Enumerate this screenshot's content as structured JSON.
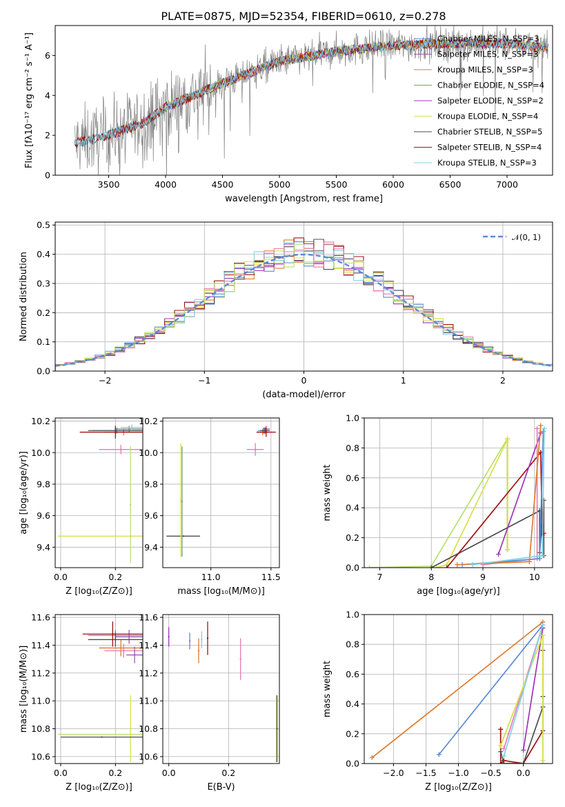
{
  "colors": {
    "spectrum": "#808080",
    "chabrier_miles": "#5b8ad6",
    "salpeter_miles": "#9b59b6",
    "kroupa_miles": "#e07b2e",
    "chabrier_elodie": "#7a9e6a",
    "salpeter_elodie": "#a033b8",
    "kroupa_elodie": "#d8e04a",
    "chabrier_stelib": "#4d4d4d",
    "salpeter_stelib": "#a01010",
    "kroupa_stelib": "#80d0e8",
    "pink": "#e87ab0",
    "green": "#b8e06a",
    "gauss": "#5b8ad6"
  },
  "chart_data": [
    {
      "id": "spectrum",
      "type": "line",
      "title": "PLATE=0875, MJD=52354, FIBERID=0610, z=0.278",
      "xlabel": "wavelength [Angstrom, rest frame]",
      "ylabel": "Flux [fλ10⁻¹⁷ erg cm⁻² s⁻¹ A⁻¹]",
      "xlim": [
        3030,
        7400
      ],
      "ylim": [
        0,
        7.5
      ],
      "xticks": [
        "3500",
        "4000",
        "4500",
        "5000",
        "5500",
        "6000",
        "6500",
        "7000"
      ],
      "yticks": [
        "0",
        "2",
        "4",
        "6"
      ],
      "legend_position": "top-right",
      "legend": [
        {
          "label": "Chabrier MILES, N_SSP=3",
          "color_key": "chabrier_miles"
        },
        {
          "label": "Salpeter MILES, N_SSP=3",
          "color_key": "salpeter_miles"
        },
        {
          "label": "Kroupa MILES, N_SSP=3",
          "color_key": "kroupa_miles"
        },
        {
          "label": "Chabrier ELODIE, N_SSP=4",
          "color_key": "chabrier_elodie"
        },
        {
          "label": "Salpeter ELODIE, N_SSP=2",
          "color_key": "salpeter_elodie"
        },
        {
          "label": "Kroupa ELODIE, N_SSP=4",
          "color_key": "kroupa_elodie"
        },
        {
          "label": "Chabrier STELIB, N_SSP=5",
          "color_key": "chabrier_stelib"
        },
        {
          "label": "Salpeter STELIB, N_SSP=4",
          "color_key": "salpeter_stelib"
        },
        {
          "label": "Kroupa STELIB, N_SSP=3",
          "color_key": "kroupa_stelib"
        }
      ],
      "continuum": {
        "x": [
          3200,
          3500,
          3800,
          4000,
          4500,
          5000,
          5500,
          6000,
          6500,
          7000,
          7350
        ],
        "y": [
          1.6,
          2.0,
          2.6,
          3.4,
          4.6,
          5.7,
          6.2,
          6.5,
          6.6,
          6.6,
          6.4
        ]
      }
    },
    {
      "id": "residuals",
      "type": "bar",
      "xlabel": "(data-model)/error",
      "ylabel": "Normed distribution",
      "xlim": [
        -2.5,
        2.5
      ],
      "ylim": [
        0,
        0.51
      ],
      "xticks": [
        "−2",
        "−1",
        "0",
        "1",
        "2"
      ],
      "yticks": [
        "0.0",
        "0.1",
        "0.2",
        "0.3",
        "0.4",
        "0.5"
      ],
      "legend_position": "top-right",
      "legend": [
        {
          "label": "𝒩(0, 1)",
          "color_key": "gauss"
        }
      ],
      "bin_width": 0.1
    },
    {
      "id": "age_vs_Z",
      "type": "scatter",
      "xlabel": "Z [log₁₀(Z/Z⊙)]",
      "ylabel": "age  [log₁₀(age/yr)]",
      "xlim": [
        -0.02,
        0.3
      ],
      "ylim": [
        9.27,
        10.22
      ],
      "xticks": [
        "0.0",
        "0.2"
      ],
      "yticks": [
        "9.4",
        "9.6",
        "9.8",
        "10.0",
        "10.2"
      ],
      "points": [
        {
          "x": 0.205,
          "y": 10.14,
          "xerr": 0.09,
          "yerr": 0.02,
          "color_key": "chabrier_miles"
        },
        {
          "x": 0.25,
          "y": 10.15,
          "xerr": 0.05,
          "yerr": 0.02,
          "color_key": "salpeter_miles"
        },
        {
          "x": 0.23,
          "y": 10.13,
          "xerr": 0.07,
          "yerr": 0.02,
          "color_key": "kroupa_miles"
        },
        {
          "x": 0.25,
          "y": 10.15,
          "xerr": 0.05,
          "yerr": 0.02,
          "color_key": "chabrier_elodie"
        },
        {
          "x": 0.2,
          "y": 10.14,
          "xerr": 0.1,
          "yerr": 0.02,
          "color_key": "chabrier_stelib"
        },
        {
          "x": 0.2,
          "y": 10.13,
          "xerr": 0.13,
          "yerr": 0.04,
          "color_key": "salpeter_stelib"
        },
        {
          "x": 0.26,
          "y": 10.16,
          "xerr": 0.04,
          "yerr": 0.02,
          "color_key": "kroupa_stelib"
        },
        {
          "x": 0.22,
          "y": 10.02,
          "xerr": 0.08,
          "yerr": 0.03,
          "color_key": "pink"
        },
        {
          "x": 0.255,
          "y": 9.47,
          "xerr": 0.265,
          "yerr": 0.0,
          "color_key": "kroupa_elodie"
        },
        {
          "x": 0.255,
          "y": 9.67,
          "xerr": 0.0,
          "yerr": 0.37,
          "color_key": "green"
        }
      ]
    },
    {
      "id": "age_vs_mass",
      "type": "scatter",
      "xlabel": "mass [log₁₀(M/M⊙)]",
      "xlim": [
        10.6,
        11.57
      ],
      "ylim": [
        9.27,
        10.22
      ],
      "xticks": [
        "11.0",
        "11.5"
      ],
      "yticks": [
        "9.4",
        "9.6",
        "9.8",
        "10.0",
        "10.2"
      ],
      "points": [
        {
          "x": 11.44,
          "y": 10.14,
          "xerr": 0.05,
          "yerr": 0.02,
          "color_key": "chabrier_miles"
        },
        {
          "x": 11.46,
          "y": 10.15,
          "xerr": 0.03,
          "yerr": 0.02,
          "color_key": "salpeter_miles"
        },
        {
          "x": 11.43,
          "y": 10.13,
          "xerr": 0.05,
          "yerr": 0.02,
          "color_key": "kroupa_miles"
        },
        {
          "x": 11.45,
          "y": 10.14,
          "xerr": 0.04,
          "yerr": 0.02,
          "color_key": "chabrier_stelib"
        },
        {
          "x": 11.46,
          "y": 10.13,
          "xerr": 0.08,
          "yerr": 0.03,
          "color_key": "salpeter_stelib"
        },
        {
          "x": 11.37,
          "y": 10.02,
          "xerr": 0.07,
          "yerr": 0.04,
          "color_key": "pink"
        },
        {
          "x": 10.77,
          "y": 9.47,
          "xerr": 0.14,
          "yerr": 0.0,
          "color_key": "chabrier_stelib"
        },
        {
          "x": 10.75,
          "y": 9.7,
          "xerr": 0.0,
          "yerr": 0.36,
          "color_key": "kroupa_elodie"
        },
        {
          "x": 10.76,
          "y": 9.69,
          "xerr": 0.0,
          "yerr": 0.35,
          "color_key": "chabrier_elodie"
        }
      ]
    },
    {
      "id": "mass_weight_vs_age",
      "type": "line",
      "xlabel": "age  [log₁₀(age/yr)]",
      "ylabel": "mass weight",
      "xlim": [
        6.7,
        10.35
      ],
      "ylim": [
        0,
        1.0
      ],
      "xticks": [
        "7",
        "8",
        "9",
        "10"
      ],
      "yticks": [
        "0.0",
        "0.2",
        "0.4",
        "0.6",
        "0.8",
        "1.0"
      ],
      "series": [
        {
          "color_key": "green",
          "x": [
            6.8,
            8.0,
            9.47,
            9.47
          ],
          "y": [
            0.0,
            0.01,
            0.86,
            0.12
          ]
        },
        {
          "color_key": "kroupa_elodie",
          "x": [
            8.1,
            8.3,
            9.48,
            9.48
          ],
          "y": [
            0.0,
            0.02,
            0.86,
            0.12
          ]
        },
        {
          "color_key": "chabrier_stelib",
          "x": [
            8.0,
            10.1,
            10.1,
            10.18,
            10.18
          ],
          "y": [
            0.0,
            0.38,
            0.1,
            0.45,
            0.08
          ]
        },
        {
          "color_key": "salpeter_stelib",
          "x": [
            8.3,
            10.12,
            10.15,
            10.18
          ],
          "y": [
            0.0,
            0.77,
            0.22,
            0.23
          ]
        },
        {
          "color_key": "salpeter_elodie",
          "x": [
            9.3,
            10.12
          ],
          "y": [
            0.09,
            0.9
          ]
        },
        {
          "color_key": "pink",
          "x": [
            9.0,
            10.05,
            10.05
          ],
          "y": [
            0.02,
            0.06,
            0.93
          ]
        },
        {
          "color_key": "chabrier_miles",
          "x": [
            8.6,
            10.1,
            10.17
          ],
          "y": [
            0.02,
            0.06,
            0.91
          ]
        },
        {
          "color_key": "kroupa_miles",
          "x": [
            8.5,
            9.9,
            10.12
          ],
          "y": [
            0.02,
            0.04,
            0.95
          ]
        },
        {
          "color_key": "kroupa_stelib",
          "x": [
            8.8,
            10.15,
            10.19
          ],
          "y": [
            0.02,
            0.08,
            0.93
          ]
        }
      ]
    },
    {
      "id": "mass_vs_Z",
      "type": "scatter",
      "xlabel": "Z [log₁₀(Z/Z⊙)]",
      "ylabel": "mass [log₁₀(M/M⊙)]",
      "xlim": [
        -0.02,
        0.3
      ],
      "ylim": [
        10.55,
        11.62
      ],
      "xticks": [
        "0.0",
        "0.2"
      ],
      "yticks": [
        "10.6",
        "10.8",
        "11.0",
        "11.2",
        "11.4",
        "11.6"
      ],
      "points": [
        {
          "x": 0.2,
          "y": 11.47,
          "xerr": 0.1,
          "yerr": 0.04,
          "color_key": "chabrier_miles"
        },
        {
          "x": 0.25,
          "y": 11.46,
          "xerr": 0.05,
          "yerr": 0.05,
          "color_key": "salpeter_miles"
        },
        {
          "x": 0.22,
          "y": 11.38,
          "xerr": 0.08,
          "yerr": 0.06,
          "color_key": "kroupa_miles"
        },
        {
          "x": 0.2,
          "y": 11.44,
          "xerr": 0.1,
          "yerr": 0.05,
          "color_key": "chabrier_stelib"
        },
        {
          "x": 0.19,
          "y": 11.48,
          "xerr": 0.11,
          "yerr": 0.09,
          "color_key": "salpeter_stelib"
        },
        {
          "x": 0.23,
          "y": 11.36,
          "xerr": 0.07,
          "yerr": 0.05,
          "color_key": "pink"
        },
        {
          "x": 0.27,
          "y": 11.33,
          "xerr": 0.03,
          "yerr": 0.06,
          "color_key": "salpeter_miles"
        },
        {
          "x": 0.255,
          "y": 10.76,
          "xerr": 0.265,
          "yerr": 0.0,
          "color_key": "green"
        },
        {
          "x": 0.255,
          "y": 10.8,
          "xerr": 0.0,
          "yerr": 0.24,
          "color_key": "kroupa_elodie"
        },
        {
          "x": 0.15,
          "y": 10.74,
          "xerr": 0.15,
          "yerr": 0.0,
          "color_key": "chabrier_stelib"
        }
      ]
    },
    {
      "id": "mass_vs_ebv",
      "type": "scatter",
      "xlabel": "E(B-V)",
      "xlim": [
        -0.02,
        0.37
      ],
      "ylim": [
        10.55,
        11.62
      ],
      "xticks": [
        "0.0",
        "0.2"
      ],
      "yticks": [
        "10.6",
        "10.8",
        "11.0",
        "11.2",
        "11.4",
        "11.6"
      ],
      "points": [
        {
          "x": 0.0,
          "y": 11.46,
          "yerr": 0.07,
          "color_key": "salpeter_elodie"
        },
        {
          "x": 0.07,
          "y": 11.43,
          "yerr": 0.06,
          "color_key": "chabrier_miles"
        },
        {
          "x": 0.1,
          "y": 11.36,
          "yerr": 0.09,
          "color_key": "kroupa_miles"
        },
        {
          "x": 0.11,
          "y": 11.44,
          "yerr": 0.06,
          "color_key": "kroupa_stelib"
        },
        {
          "x": 0.13,
          "y": 11.45,
          "yerr": 0.12,
          "color_key": "salpeter_stelib"
        },
        {
          "x": 0.24,
          "y": 11.3,
          "yerr": 0.15,
          "color_key": "pink"
        },
        {
          "x": 0.36,
          "y": 10.8,
          "yerr": 0.24,
          "color_key": "green"
        },
        {
          "x": 0.362,
          "y": 10.8,
          "yerr": 0.24,
          "color_key": "chabrier_stelib"
        }
      ]
    },
    {
      "id": "mass_weight_vs_Z",
      "type": "line",
      "xlabel": "Z [log₁₀(Z/Z⊙)]",
      "ylabel": "mass weight",
      "xlim": [
        -2.45,
        0.45
      ],
      "ylim": [
        0,
        1.0
      ],
      "xticks": [
        "−2.0",
        "−1.5",
        "−1.0",
        "−0.5",
        "0.0"
      ],
      "yticks": [
        "0.0",
        "0.2",
        "0.4",
        "0.6",
        "0.8",
        "1.0"
      ],
      "series": [
        {
          "color_key": "kroupa_miles",
          "x": [
            -2.33,
            0.3
          ],
          "y": [
            0.04,
            0.95
          ]
        },
        {
          "color_key": "chabrier_miles",
          "x": [
            -1.3,
            0.3
          ],
          "y": [
            0.06,
            0.93
          ]
        },
        {
          "color_key": "pink",
          "x": [
            -0.3,
            0.3
          ],
          "y": [
            0.1,
            0.93
          ]
        },
        {
          "color_key": "salpeter_elodie",
          "x": [
            0.0,
            0.3
          ],
          "y": [
            0.09,
            0.91
          ]
        },
        {
          "color_key": "salpeter_stelib",
          "x": [
            -0.35,
            -0.35,
            -0.3,
            0.0,
            0.3,
            0.3
          ],
          "y": [
            0.23,
            0.0,
            0.02,
            0.0,
            0.22,
            0.76
          ]
        },
        {
          "color_key": "chabrier_stelib",
          "x": [
            -0.35,
            -0.3,
            0.0,
            0.3,
            0.3
          ],
          "y": [
            0.08,
            0.0,
            0.0,
            0.38,
            0.45
          ]
        },
        {
          "color_key": "green",
          "x": [
            -0.35,
            0.3,
            0.3
          ],
          "y": [
            0.12,
            0.86,
            0.0
          ]
        },
        {
          "color_key": "kroupa_elodie",
          "x": [
            -0.35,
            0.3,
            0.3
          ],
          "y": [
            0.12,
            0.86,
            0.02
          ]
        },
        {
          "color_key": "kroupa_stelib",
          "x": [
            -0.3,
            0.3
          ],
          "y": [
            0.05,
            0.93
          ]
        }
      ]
    }
  ]
}
